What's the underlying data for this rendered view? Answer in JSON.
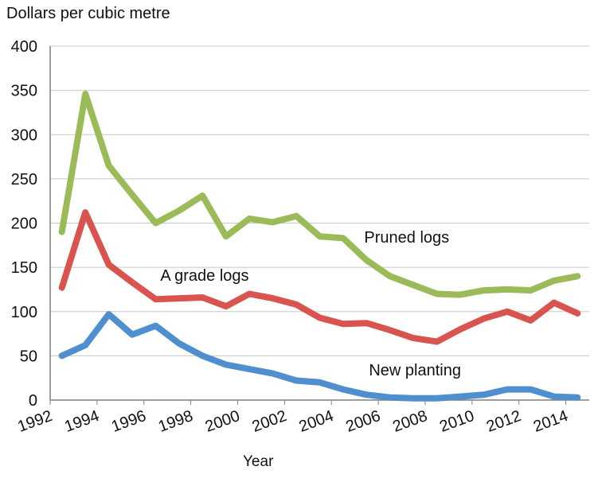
{
  "chart_data": {
    "type": "line",
    "title": "",
    "ylabel": "Dollars per cubic metre",
    "xlabel": "Year",
    "ylim": [
      0,
      400
    ],
    "xlim": [
      1992,
      2015
    ],
    "yticks": [
      0,
      50,
      100,
      150,
      200,
      250,
      300,
      350,
      400
    ],
    "xticks": [
      1992,
      1994,
      1996,
      1998,
      2000,
      2002,
      2004,
      2006,
      2008,
      2010,
      2012,
      2014
    ],
    "grid": "horizontal",
    "legend": "none",
    "x": [
      1992.5,
      1993.5,
      1994.5,
      1995.5,
      1996.5,
      1997.5,
      1998.5,
      1999.5,
      2000.5,
      2001.5,
      2002.5,
      2003.5,
      2004.5,
      2005.5,
      2006.5,
      2007.5,
      2008.5,
      2009.5,
      2010.5,
      2011.5,
      2012.5,
      2013.5,
      2014.5
    ],
    "series": [
      {
        "name": "Pruned logs",
        "color": "#9bbb59",
        "values": [
          190,
          346,
          265,
          232,
          200,
          214,
          231,
          185,
          205,
          201,
          208,
          185,
          183,
          158,
          140,
          130,
          120,
          119,
          124,
          125,
          124,
          135,
          140
        ]
      },
      {
        "name": "A grade logs",
        "color": "#d9534f",
        "values": [
          127,
          212,
          153,
          133,
          114,
          115,
          116,
          106,
          120,
          115,
          108,
          93,
          86,
          87,
          79,
          70,
          66,
          80,
          92,
          100,
          90,
          110,
          98
        ]
      },
      {
        "name": "New planting",
        "color": "#4f8fcf",
        "values": [
          50,
          62,
          97,
          74,
          84,
          64,
          50,
          40,
          35,
          30,
          22,
          20,
          12,
          6,
          3,
          2,
          2,
          4,
          6,
          12,
          12,
          4,
          3
        ]
      }
    ]
  }
}
